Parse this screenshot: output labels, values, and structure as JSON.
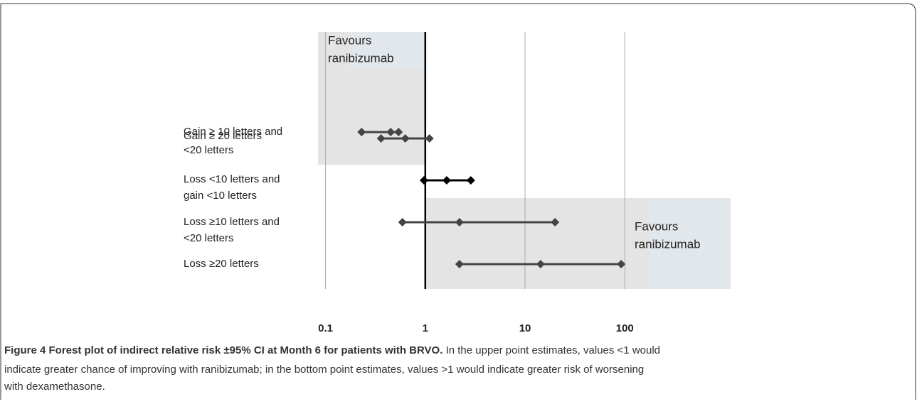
{
  "chart_data": {
    "type": "forest",
    "log_x": true,
    "xlim": [
      0.08,
      1150
    ],
    "xticks": [
      0.1,
      1,
      10,
      100
    ],
    "grid": true,
    "reference": 1,
    "rows": [
      {
        "label": [
          "Gain ≥ 20 letters"
        ],
        "lower": 0.23,
        "estimate": 0.45,
        "upper": 0.54,
        "color": "#444444"
      },
      {
        "label": [
          "Gain ≥ 10 letters  and",
          "<20 letters"
        ],
        "lower": 0.36,
        "estimate": 0.63,
        "upper": 1.1,
        "color": "#444444"
      },
      {
        "label": [
          "Loss <10 letters  and",
          "gain <10 letters"
        ],
        "lower": 0.97,
        "estimate": 1.64,
        "upper": 2.86,
        "color": "#000000"
      },
      {
        "label": [
          "Loss ≥10 letters  and",
          "<20 letters"
        ],
        "lower": 0.59,
        "estimate": 2.2,
        "upper": 20,
        "color": "#444444"
      },
      {
        "label": [
          "Loss ≥20 letters"
        ],
        "lower": 2.2,
        "estimate": 14.3,
        "upper": 92,
        "color": "#444444"
      }
    ],
    "annotations": [
      {
        "lines": [
          "Favours",
          "ranibizumab"
        ]
      },
      {
        "lines": [
          "Favours",
          "ranibizumab"
        ]
      }
    ],
    "caption": {
      "label": "Figure 4 Forest plot of indirect relative risk ±95% CI at Month 6 for patients with BRVO.",
      "lines": [
        " In the upper point estimates, values <1 would",
        "indicate greater chance of improving with ranibizumab; in the bottom point estimates, values >1 would indicate greater risk of worsening",
        "with dexamethasone."
      ]
    }
  }
}
